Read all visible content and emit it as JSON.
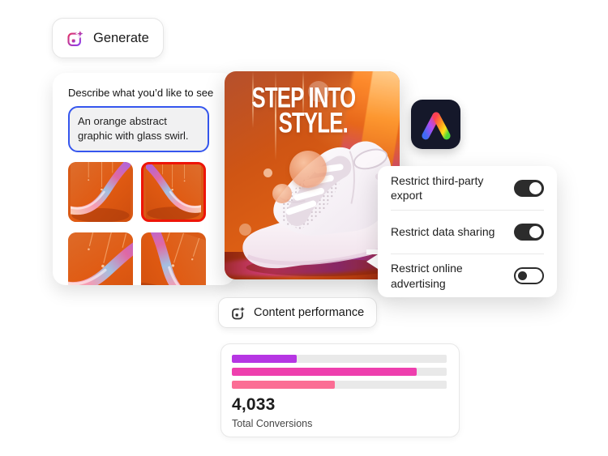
{
  "generate_button": {
    "label": "Generate"
  },
  "prompt_panel": {
    "heading": "Describe what you’d like to see",
    "prompt": {
      "value": "An orange abstract graphic with glass swirl."
    },
    "thumbnails": [
      {
        "name": "swirl-variant-1",
        "selected": false
      },
      {
        "name": "swirl-variant-2",
        "selected": true
      },
      {
        "name": "swirl-variant-3",
        "selected": false
      },
      {
        "name": "swirl-variant-4",
        "selected": false
      }
    ]
  },
  "hero_banner": {
    "headline_line1": "STEP INTO",
    "headline_line2": "STYLE."
  },
  "privacy_card": {
    "items": [
      {
        "label": "Restrict third-party export",
        "enabled": true
      },
      {
        "label": "Restrict data sharing",
        "enabled": true
      },
      {
        "label": "Restrict online advertising",
        "enabled": false
      }
    ]
  },
  "performance_button": {
    "label": "Content performance"
  },
  "chart_card": {
    "total_value": "4,033",
    "total_label": "Total Conversions"
  },
  "chart_data": {
    "type": "bar",
    "orientation": "horizontal",
    "title": "Content performance",
    "series": [
      {
        "name": "bar-1",
        "percent": 30,
        "color": "#b636e3"
      },
      {
        "name": "bar-2",
        "percent": 86,
        "color": "#ee3fae"
      },
      {
        "name": "bar-3",
        "percent": 48,
        "color": "#fb6d94"
      }
    ],
    "track_color": "#e9e9e9",
    "total": {
      "value": 4033,
      "label": "Total Conversions"
    }
  },
  "colors": {
    "prompt_border": "#3556ee",
    "selection_border": "#ee1508",
    "toggle_on": "#2c2c2c",
    "hero_orange": "#dd5f14",
    "logo_background": "#15182a"
  }
}
